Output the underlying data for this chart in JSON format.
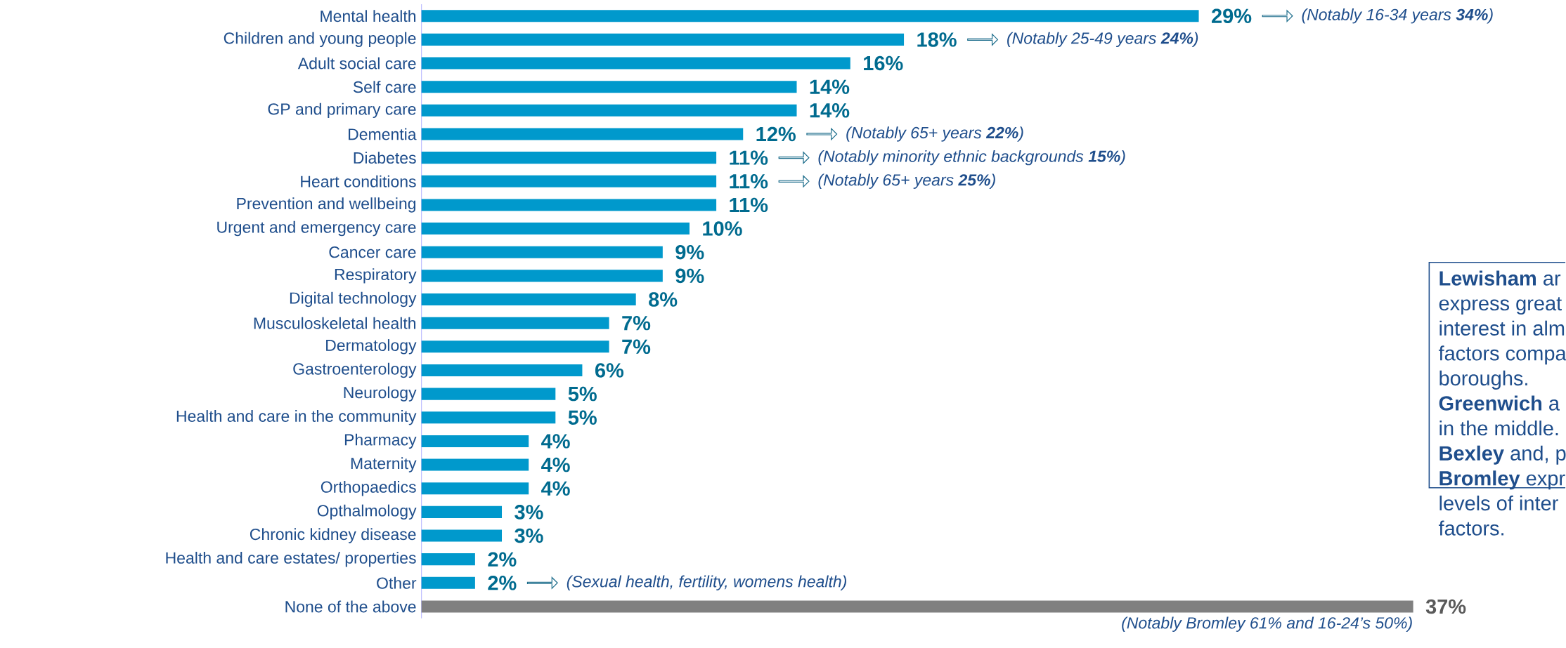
{
  "chart_data": {
    "type": "bar",
    "orientation": "horizontal",
    "tick_labels": "y",
    "categories": [
      "Mental health",
      "Children and young people",
      "Adult social care",
      "Self care",
      "GP and primary care",
      "Dementia",
      "Diabetes",
      "Heart conditions",
      "Prevention and wellbeing",
      "Urgent and emergency care",
      "Cancer care",
      "Respiratory",
      "Digital technology",
      "Musculoskeletal health",
      "Dermatology",
      "Gastroenterology",
      "Neurology",
      "Health and care in the community",
      "Pharmacy",
      "Maternity",
      "Orthopaedics",
      "Opthalmology",
      "Chronic kidney disease",
      "Health and care  estates/ properties",
      "Other",
      "None of the above"
    ],
    "values": [
      29,
      18,
      16,
      14,
      14,
      12,
      11,
      11,
      11,
      10,
      9,
      9,
      8,
      7,
      7,
      6,
      5,
      5,
      4,
      4,
      4,
      3,
      3,
      2,
      2,
      37
    ],
    "value_labels": [
      "29%",
      "18%",
      "16%",
      "14%",
      "14%",
      "12%",
      "11%",
      "11%",
      "11%",
      "10%",
      "9%",
      "9%",
      "8%",
      "7%",
      "7%",
      "6%",
      "5%",
      "5%",
      "4%",
      "4%",
      "4%",
      "3%",
      "3%",
      "2%",
      "2%",
      "37%"
    ],
    "colors": [
      "#0099cc",
      "#0099cc",
      "#0099cc",
      "#0099cc",
      "#0099cc",
      "#0099cc",
      "#0099cc",
      "#0099cc",
      "#0099cc",
      "#0099cc",
      "#0099cc",
      "#0099cc",
      "#0099cc",
      "#0099cc",
      "#0099cc",
      "#0099cc",
      "#0099cc",
      "#0099cc",
      "#0099cc",
      "#0099cc",
      "#0099cc",
      "#0099cc",
      "#0099cc",
      "#0099cc",
      "#0099cc",
      "#808080"
    ],
    "annotations": [
      "(Notably 16-34 years **34%**)",
      "(Notably 25-49 years **24%**)",
      "(Notably 65+ years **22%**)",
      "(Notably minority ethnic backgrounds **15%**)",
      "(Notably 65+ years **25%**)",
      "(Sexual health, fertility, womens health)",
      "(Notably Bromley 61% and 16-24’s 50%)",
      "**Lewisham** ar",
      "express great",
      "interest in alm",
      "factors compa",
      "boroughs.",
      "**Greenwich** a",
      "in the middle.",
      "**Bexley** and, p",
      "**Bromley** expr",
      "levels of inter",
      "factors."
    ]
  }
}
